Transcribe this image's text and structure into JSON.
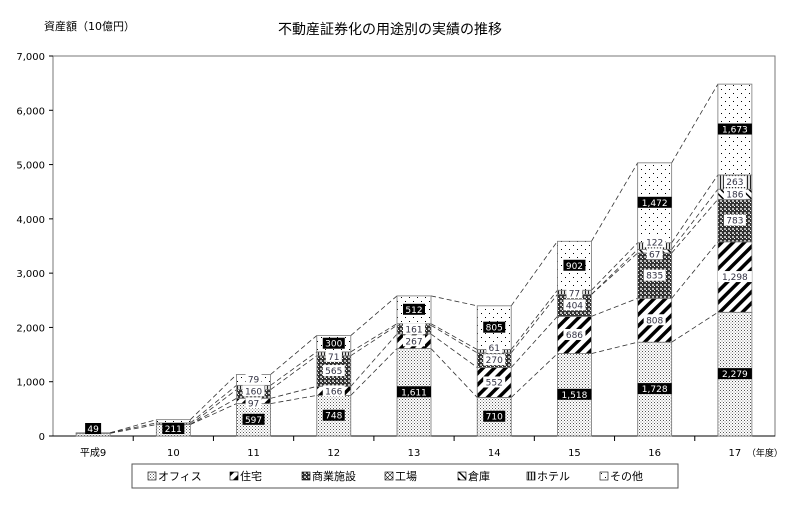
{
  "chart_data": {
    "type": "bar",
    "stacked": true,
    "title": "不動産証券化の用途別の実績の推移",
    "ylabel": "資産額（10億円）",
    "xlabel_suffix": "（年度）",
    "categories": [
      "平成9",
      "10",
      "11",
      "12",
      "13",
      "14",
      "15",
      "16",
      "17"
    ],
    "ylim": [
      0,
      7000
    ],
    "yticks": [
      "0",
      "1,000",
      "2,000",
      "3,000",
      "4,000",
      "5,000",
      "6,000",
      "7,000"
    ],
    "legend_position": "bottom",
    "series": [
      {
        "name": "オフィス",
        "pattern": "dense-dots",
        "values": [
          49,
          211,
          597,
          748,
          1611,
          710,
          1518,
          1728,
          2279
        ],
        "labels": [
          "49",
          "211",
          "597",
          "748",
          "1,611",
          "710",
          "1,518",
          "1,728",
          "2,279"
        ]
      },
      {
        "name": "住宅",
        "pattern": "heavy-diagonal",
        "values": [
          0,
          0,
          97,
          166,
          267,
          552,
          686,
          808,
          1298
        ],
        "labels": [
          "",
          "",
          "97",
          "166",
          "267",
          "552",
          "686",
          "808",
          "1,298"
        ]
      },
      {
        "name": "商業施設",
        "pattern": "dark-checker",
        "values": [
          0,
          0,
          160,
          565,
          161,
          270,
          404,
          835,
          783
        ],
        "labels": [
          "",
          "",
          "160",
          "565",
          "161",
          "270",
          "404",
          "835",
          "783"
        ]
      },
      {
        "name": "工場",
        "pattern": "cross",
        "values": [
          0,
          0,
          0,
          0,
          0,
          0,
          0,
          0,
          0
        ],
        "labels": [
          "",
          "",
          "",
          "",
          "",
          "",
          "",
          "",
          ""
        ]
      },
      {
        "name": "倉庫",
        "pattern": "light-diagonal",
        "values": [
          0,
          0,
          0,
          0,
          0,
          0,
          0,
          67,
          186
        ],
        "labels": [
          "",
          "",
          "",
          "",
          "",
          "",
          "",
          "67",
          "186"
        ]
      },
      {
        "name": "ホテル",
        "pattern": "vertical",
        "values": [
          10,
          30,
          79,
          71,
          30,
          61,
          77,
          122,
          263
        ],
        "labels": [
          "",
          "",
          "79",
          "71",
          "",
          "61",
          "77",
          "122",
          "263"
        ]
      },
      {
        "name": "その他",
        "pattern": "sparse-dots",
        "values": [
          0,
          60,
          200,
          300,
          512,
          805,
          902,
          1472,
          1673
        ],
        "labels": [
          "",
          "",
          "",
          "300",
          "512",
          "805",
          "902",
          "1,472",
          "1,673"
        ]
      }
    ]
  }
}
